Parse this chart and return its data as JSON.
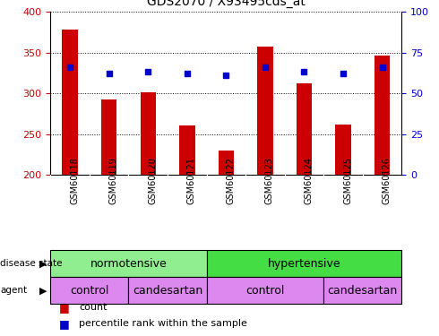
{
  "title": "GDS2070 / X93495cds_at",
  "samples": [
    "GSM60118",
    "GSM60119",
    "GSM60120",
    "GSM60121",
    "GSM60122",
    "GSM60123",
    "GSM60124",
    "GSM60125",
    "GSM60126"
  ],
  "count_values": [
    378,
    292,
    301,
    260,
    230,
    357,
    312,
    262,
    346
  ],
  "percentile_values": [
    66,
    62,
    63,
    62,
    61,
    66,
    63,
    62,
    66
  ],
  "ylim_left": [
    200,
    400
  ],
  "ylim_right": [
    0,
    100
  ],
  "yticks_left": [
    200,
    250,
    300,
    350,
    400
  ],
  "yticks_right": [
    0,
    25,
    50,
    75,
    100
  ],
  "bar_color": "#cc0000",
  "dot_color": "#0000cc",
  "disease_state": [
    {
      "label": "normotensive",
      "start": 0,
      "end": 4,
      "color": "#90ee90"
    },
    {
      "label": "hypertensive",
      "start": 4,
      "end": 9,
      "color": "#44dd44"
    }
  ],
  "agent": [
    {
      "label": "control",
      "start": 0,
      "end": 2
    },
    {
      "label": "candesartan",
      "start": 2,
      "end": 4
    },
    {
      "label": "control",
      "start": 4,
      "end": 7
    },
    {
      "label": "candesartan",
      "start": 7,
      "end": 9
    }
  ],
  "agent_color": "#dd88ee",
  "background_color": "#ffffff",
  "left_axis_color": "#cc0000",
  "right_axis_color": "#0000cc",
  "label_bg_color": "#cccccc"
}
